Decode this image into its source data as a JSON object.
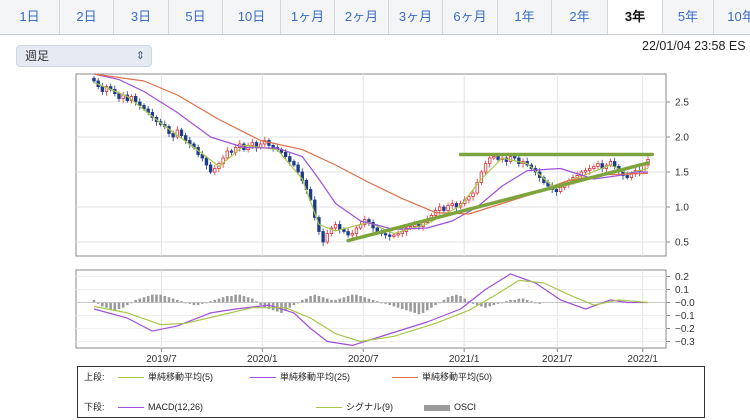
{
  "tabs": [
    {
      "label": "1日"
    },
    {
      "label": "2日"
    },
    {
      "label": "3日"
    },
    {
      "label": "5日"
    },
    {
      "label": "10日"
    },
    {
      "label": "1ヶ月"
    },
    {
      "label": "2ヶ月"
    },
    {
      "label": "3ヶ月"
    },
    {
      "label": "6ヶ月"
    },
    {
      "label": "1年"
    },
    {
      "label": "2年"
    },
    {
      "label": "3年"
    },
    {
      "label": "5年"
    },
    {
      "label": "10年"
    }
  ],
  "active_tab": "3年",
  "period_select": {
    "value": "週足"
  },
  "timestamp": "22/01/04 23:58 ES",
  "legend": {
    "upper_label": "上段:",
    "lower_label": "下段:",
    "upper_items": [
      {
        "name": "単純移動平均(5)",
        "color": "#a8c64a"
      },
      {
        "name": "単純移動平均(25)",
        "color": "#a050d8"
      },
      {
        "name": "単純移動平均(50)",
        "color": "#e0704a"
      }
    ],
    "lower_items": [
      {
        "name": "MACD(12,26)",
        "color": "#a050d8"
      },
      {
        "name": "シグナル(9)",
        "color": "#a8c64a"
      },
      {
        "name": "OSCI",
        "color": "#9a9a9a"
      }
    ]
  },
  "chart_data": [
    {
      "type": "candlestick",
      "panel": "price",
      "ylim": [
        0.3,
        2.9
      ],
      "yticks": [
        "0.5",
        "1.0",
        "1.5",
        "2.0",
        "2.5"
      ],
      "x_tick_labels": [
        "2019/7",
        "2020/1",
        "2020/7",
        "2021/1",
        "2021/7",
        "2022/1"
      ],
      "close": [
        2.8,
        2.72,
        2.65,
        2.72,
        2.68,
        2.62,
        2.55,
        2.6,
        2.52,
        2.58,
        2.5,
        2.45,
        2.4,
        2.35,
        2.28,
        2.22,
        2.18,
        2.15,
        2.05,
        2.0,
        2.1,
        2.02,
        1.95,
        1.9,
        1.85,
        1.75,
        1.7,
        1.6,
        1.5,
        1.55,
        1.62,
        1.7,
        1.8,
        1.78,
        1.85,
        1.9,
        1.82,
        1.88,
        1.92,
        1.85,
        1.9,
        1.95,
        1.88,
        1.85,
        1.82,
        1.78,
        1.72,
        1.65,
        1.6,
        1.5,
        1.38,
        1.25,
        1.1,
        0.85,
        0.65,
        0.5,
        0.62,
        0.7,
        0.75,
        0.68,
        0.65,
        0.6,
        0.62,
        0.7,
        0.75,
        0.82,
        0.78,
        0.7,
        0.65,
        0.62,
        0.6,
        0.58,
        0.6,
        0.62,
        0.65,
        0.7,
        0.72,
        0.75,
        0.72,
        0.78,
        0.82,
        0.88,
        0.95,
        1.0,
        0.95,
        1.02,
        1.05,
        1.0,
        1.05,
        1.1,
        1.15,
        1.2,
        1.35,
        1.5,
        1.62,
        1.7,
        1.72,
        1.68,
        1.7,
        1.65,
        1.72,
        1.7,
        1.62,
        1.65,
        1.6,
        1.55,
        1.5,
        1.42,
        1.35,
        1.3,
        1.25,
        1.22,
        1.28,
        1.32,
        1.38,
        1.42,
        1.45,
        1.5,
        1.52,
        1.55,
        1.58,
        1.62,
        1.55,
        1.6,
        1.65,
        1.58,
        1.52,
        1.45,
        1.42,
        1.48,
        1.52,
        1.5,
        1.6,
        1.68
      ],
      "series": [
        {
          "name": "単純移動平均(5)",
          "color": "#a8c64a",
          "points": [
            [
              0,
              2.78
            ],
            [
              8,
              2.58
            ],
            [
              16,
              2.2
            ],
            [
              24,
              1.85
            ],
            [
              30,
              1.58
            ],
            [
              36,
              1.88
            ],
            [
              44,
              1.82
            ],
            [
              50,
              1.4
            ],
            [
              54,
              0.75
            ],
            [
              58,
              0.66
            ],
            [
              66,
              0.78
            ],
            [
              72,
              0.62
            ],
            [
              80,
              0.76
            ],
            [
              88,
              1.02
            ],
            [
              93,
              1.4
            ],
            [
              98,
              1.7
            ],
            [
              104,
              1.62
            ],
            [
              110,
              1.3
            ],
            [
              118,
              1.46
            ],
            [
              124,
              1.6
            ],
            [
              128,
              1.48
            ],
            [
              133,
              1.55
            ]
          ]
        },
        {
          "name": "単純移動平均(25)",
          "color": "#a050d8",
          "points": [
            [
              0,
              2.9
            ],
            [
              6,
              2.82
            ],
            [
              12,
              2.65
            ],
            [
              20,
              2.35
            ],
            [
              28,
              2.0
            ],
            [
              36,
              1.85
            ],
            [
              44,
              1.84
            ],
            [
              50,
              1.72
            ],
            [
              54,
              1.4
            ],
            [
              58,
              1.05
            ],
            [
              64,
              0.8
            ],
            [
              72,
              0.68
            ],
            [
              80,
              0.7
            ],
            [
              86,
              0.8
            ],
            [
              92,
              1.0
            ],
            [
              98,
              1.3
            ],
            [
              104,
              1.52
            ],
            [
              112,
              1.55
            ],
            [
              120,
              1.4
            ],
            [
              126,
              1.45
            ],
            [
              130,
              1.5
            ],
            [
              133,
              1.5
            ]
          ]
        },
        {
          "name": "単純移動平均(50)",
          "color": "#e0704a",
          "points": [
            [
              0,
              2.9
            ],
            [
              12,
              2.8
            ],
            [
              20,
              2.6
            ],
            [
              30,
              2.25
            ],
            [
              40,
              1.95
            ],
            [
              50,
              1.82
            ],
            [
              58,
              1.6
            ],
            [
              66,
              1.35
            ],
            [
              74,
              1.12
            ],
            [
              82,
              0.92
            ],
            [
              90,
              0.9
            ],
            [
              98,
              1.05
            ],
            [
              106,
              1.2
            ],
            [
              114,
              1.38
            ],
            [
              122,
              1.46
            ],
            [
              133,
              1.48
            ]
          ]
        }
      ],
      "annotations": [
        {
          "type": "horizontal-line",
          "y": 1.75,
          "x_range": [
            88,
            134
          ],
          "color": "#7da43c"
        },
        {
          "type": "trend-line",
          "from": [
            61,
            0.52
          ],
          "to": [
            133,
            1.63
          ],
          "color": "#7da43c"
        }
      ]
    },
    {
      "type": "macd",
      "panel": "indicator",
      "ylim": [
        -0.35,
        0.25
      ],
      "yticks": [
        "0.2",
        "0.1",
        "−0.0",
        "−0.1",
        "−0.2",
        "−0.3"
      ],
      "series": [
        {
          "name": "MACD(12,26)",
          "color": "#a050d8",
          "points": [
            [
              0,
              -0.05
            ],
            [
              8,
              -0.12
            ],
            [
              14,
              -0.22
            ],
            [
              20,
              -0.18
            ],
            [
              28,
              -0.08
            ],
            [
              34,
              -0.05
            ],
            [
              42,
              -0.02
            ],
            [
              48,
              -0.08
            ],
            [
              52,
              -0.2
            ],
            [
              56,
              -0.3
            ],
            [
              62,
              -0.33
            ],
            [
              70,
              -0.25
            ],
            [
              80,
              -0.15
            ],
            [
              88,
              -0.05
            ],
            [
              94,
              0.1
            ],
            [
              100,
              0.22
            ],
            [
              106,
              0.15
            ],
            [
              112,
              0.02
            ],
            [
              118,
              -0.05
            ],
            [
              124,
              0.02
            ],
            [
              128,
              0.0
            ],
            [
              133,
              0.0
            ]
          ]
        },
        {
          "name": "シグナル(9)",
          "color": "#a8c64a",
          "points": [
            [
              0,
              -0.03
            ],
            [
              8,
              -0.08
            ],
            [
              16,
              -0.17
            ],
            [
              22,
              -0.16
            ],
            [
              30,
              -0.1
            ],
            [
              38,
              -0.04
            ],
            [
              46,
              -0.04
            ],
            [
              52,
              -0.12
            ],
            [
              58,
              -0.24
            ],
            [
              64,
              -0.3
            ],
            [
              72,
              -0.26
            ],
            [
              82,
              -0.16
            ],
            [
              90,
              -0.06
            ],
            [
              96,
              0.05
            ],
            [
              102,
              0.17
            ],
            [
              108,
              0.15
            ],
            [
              114,
              0.06
            ],
            [
              120,
              -0.02
            ],
            [
              126,
              0.02
            ],
            [
              133,
              0.0
            ]
          ]
        }
      ],
      "osci": [
        0.02,
        -0.01,
        -0.03,
        -0.04,
        -0.06,
        -0.06,
        -0.05,
        -0.04,
        -0.02,
        0.0,
        0.02,
        0.03,
        0.04,
        0.05,
        0.06,
        0.06,
        0.06,
        0.05,
        0.04,
        0.03,
        0.02,
        0.01,
        0.0,
        -0.01,
        -0.02,
        -0.02,
        -0.01,
        0.0,
        0.01,
        0.02,
        0.03,
        0.04,
        0.05,
        0.05,
        0.06,
        0.06,
        0.05,
        0.04,
        0.03,
        0.01,
        -0.02,
        -0.04,
        -0.05,
        -0.06,
        -0.07,
        -0.08,
        -0.06,
        -0.04,
        -0.02,
        0.0,
        0.02,
        0.03,
        0.05,
        0.06,
        0.05,
        0.04,
        0.03,
        0.02,
        0.02,
        0.03,
        0.04,
        0.05,
        0.06,
        0.06,
        0.05,
        0.04,
        0.03,
        0.02,
        0.01,
        0.0,
        -0.01,
        -0.02,
        -0.03,
        -0.04,
        -0.05,
        -0.06,
        -0.07,
        -0.08,
        -0.09,
        -0.08,
        -0.06,
        -0.04,
        -0.02,
        0.0,
        0.02,
        0.04,
        0.05,
        0.06,
        0.05,
        0.03,
        0.01,
        -0.01,
        -0.02,
        -0.03,
        -0.04,
        -0.03,
        -0.02,
        -0.01,
        0.0,
        0.01,
        0.02,
        0.02,
        0.03,
        0.03,
        0.02,
        0.01,
        0.0,
        -0.01
      ]
    }
  ]
}
